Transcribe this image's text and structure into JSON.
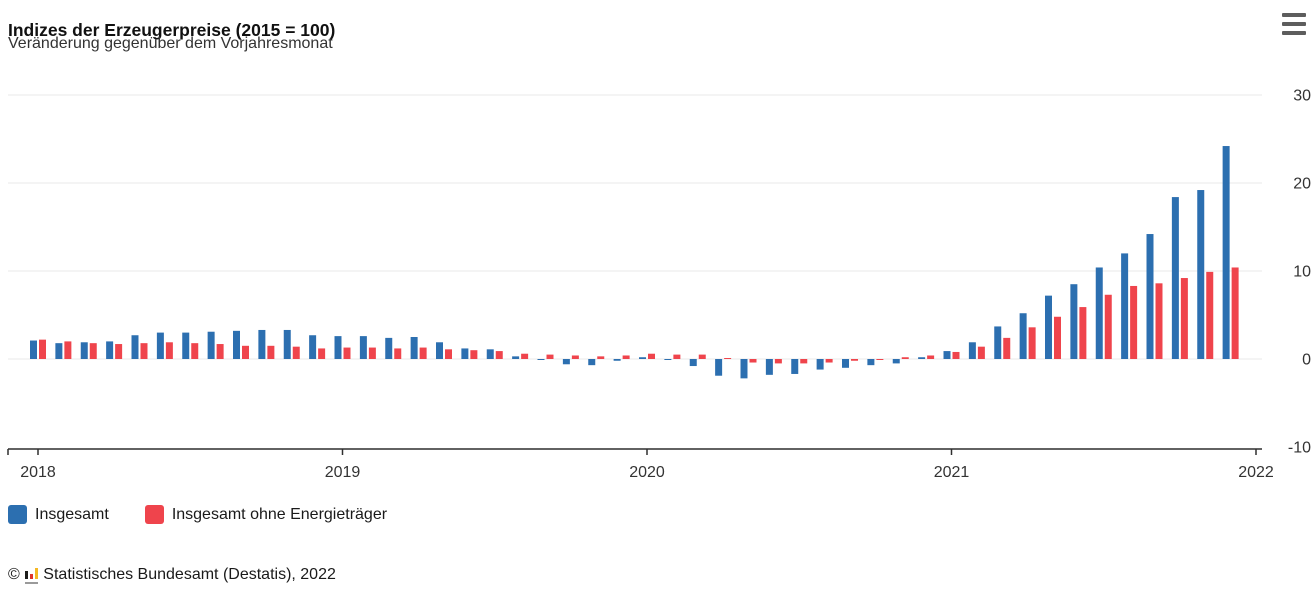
{
  "header": {
    "title": "Indizes der Erzeugerpreise (2015 = 100)",
    "subtitle": "Veränderung gegenüber dem Vorjahresmonat"
  },
  "footer": {
    "copyright": "©",
    "source": "Statistisches Bundesamt (Destatis), 2022"
  },
  "colors": {
    "insgesamt_blue": "#2c6fb0",
    "ohne_energie_red": "#ef444c",
    "gridline": "#e9e9e9",
    "axis_line": "#2f2f2f",
    "label_text": "#333333"
  },
  "chart_data": {
    "type": "bar",
    "title": "Indizes der Erzeugerpreise (2015 = 100)",
    "subtitle": "Veränderung gegenüber dem Vorjahresmonat",
    "grid": true,
    "legend_position": "bottom-left",
    "ylim": [
      -10,
      30
    ],
    "yticks": [
      30,
      20,
      10,
      0,
      -10
    ],
    "xticks": [
      "2018",
      "2019",
      "2020",
      "2021",
      "2022"
    ],
    "x": [
      "2018-01",
      "2018-02",
      "2018-03",
      "2018-04",
      "2018-05",
      "2018-06",
      "2018-07",
      "2018-08",
      "2018-09",
      "2018-10",
      "2018-11",
      "2018-12",
      "2019-01",
      "2019-02",
      "2019-03",
      "2019-04",
      "2019-05",
      "2019-06",
      "2019-07",
      "2019-08",
      "2019-09",
      "2019-10",
      "2019-11",
      "2019-12",
      "2020-01",
      "2020-02",
      "2020-03",
      "2020-04",
      "2020-05",
      "2020-06",
      "2020-07",
      "2020-08",
      "2020-09",
      "2020-10",
      "2020-11",
      "2020-12",
      "2021-01",
      "2021-02",
      "2021-03",
      "2021-04",
      "2021-05",
      "2021-06",
      "2021-07",
      "2021-08",
      "2021-09",
      "2021-10",
      "2021-11",
      "2021-12"
    ],
    "series": [
      {
        "name": "Insgesamt",
        "color": "#2c6fb0",
        "values": [
          2.1,
          1.8,
          1.9,
          2.0,
          2.7,
          3.0,
          3.0,
          3.1,
          3.2,
          3.3,
          3.3,
          2.7,
          2.6,
          2.6,
          2.4,
          2.5,
          1.9,
          1.2,
          1.1,
          0.3,
          -0.1,
          -0.6,
          -0.7,
          -0.2,
          0.2,
          -0.1,
          -0.8,
          -1.9,
          -2.2,
          -1.8,
          -1.7,
          -1.2,
          -1.0,
          -0.7,
          -0.5,
          0.2,
          0.9,
          1.9,
          3.7,
          5.2,
          7.2,
          8.5,
          10.4,
          12.0,
          14.2,
          18.4,
          19.2,
          24.2
        ]
      },
      {
        "name": "Insgesamt ohne Energieträger",
        "color": "#ef444c",
        "values": [
          2.2,
          2.0,
          1.8,
          1.7,
          1.8,
          1.9,
          1.8,
          1.7,
          1.5,
          1.5,
          1.4,
          1.2,
          1.3,
          1.3,
          1.2,
          1.3,
          1.1,
          1.0,
          0.9,
          0.6,
          0.5,
          0.4,
          0.3,
          0.4,
          0.6,
          0.5,
          0.5,
          0.0,
          -0.4,
          -0.5,
          -0.5,
          -0.4,
          -0.2,
          -0.1,
          0.2,
          0.4,
          0.8,
          1.4,
          2.4,
          3.6,
          4.8,
          5.9,
          7.3,
          8.3,
          8.6,
          9.2,
          9.9,
          10.4
        ]
      }
    ]
  }
}
